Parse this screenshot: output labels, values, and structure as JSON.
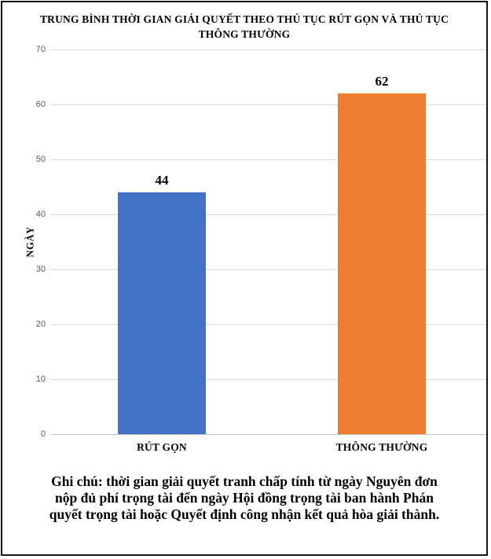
{
  "chart_data": {
    "type": "bar",
    "title": "TRUNG BÌNH THỜI GIAN GIẢI QUYẾT THEO THỦ TỤC RÚT GỌN VÀ THỦ TỤC THÔNG THƯỜNG",
    "title_lines": [
      "TRUNG BÌNH THỜI GIAN GIẢI QUYẾT THEO THỦ TỤC RÚT GỌN VÀ THỦ TỤC",
      "THÔNG THƯỜNG"
    ],
    "categories": [
      "RÚT GỌN",
      "THÔNG THƯỜNG"
    ],
    "values": [
      44,
      62
    ],
    "data_labels": [
      "44",
      "62"
    ],
    "bar_colors": [
      "#4472C4",
      "#ED7D31"
    ],
    "xlabel": "",
    "ylabel": "NGÀY",
    "ylim": [
      0,
      70
    ],
    "yticks": [
      0,
      10,
      20,
      30,
      40,
      50,
      60,
      70
    ],
    "grid": true,
    "legend_position": "none"
  },
  "footnote": {
    "text": "Ghi chú: thời gian giải quyết tranh chấp tính từ ngày Nguyên đơn nộp đủ phí trọng tài đến ngày Hội đồng trọng tài ban hành Phán quyết trọng tài hoặc Quyết định công nhận kết quả hòa giải thành.",
    "lines": [
      "Ghi chú: thời gian giải quyết tranh chấp tính từ ngày Nguyên đơn",
      "nộp đủ phí trọng tài đến ngày Hội đồng trọng tài ban hành Phán",
      "quyết trọng tài hoặc Quyết định công nhận kết quả hòa giải thành."
    ]
  },
  "colors": {
    "background": "#ffffff",
    "border": "#141414",
    "text": "#000000",
    "grid": "#d9d9d9",
    "axis": "#c4c4c4",
    "tick_label": "#595959"
  }
}
